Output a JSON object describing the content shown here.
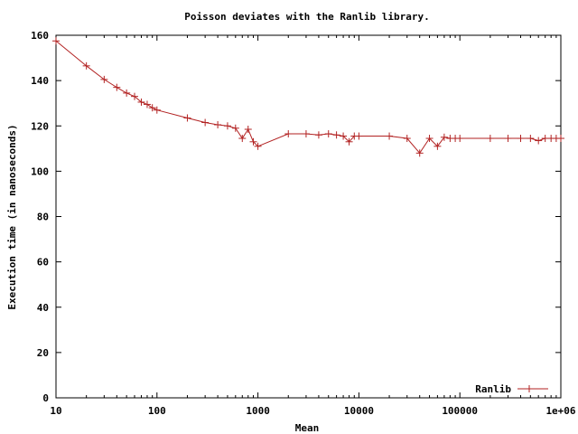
{
  "chart_data": {
    "type": "line",
    "title": "Poisson deviates with the Ranlib library.",
    "xlabel": "Mean",
    "ylabel": "Execution time (in nanoseconds)",
    "x_scale": "log",
    "xlim": [
      10,
      1000000
    ],
    "ylim": [
      0,
      160
    ],
    "xticks": [
      10,
      100,
      1000,
      10000,
      100000,
      1000000
    ],
    "xtick_labels": [
      "10",
      "100",
      "1000",
      "10000",
      "100000",
      "1e+06"
    ],
    "yticks": [
      0,
      20,
      40,
      60,
      80,
      100,
      120,
      140,
      160
    ],
    "ytick_labels": [
      "0",
      "20",
      "40",
      "60",
      "80",
      "100",
      "120",
      "140",
      "160"
    ],
    "legend_position": "bottom-right",
    "grid": false,
    "series": [
      {
        "name": "Ranlib",
        "color": "#b22222",
        "x": [
          10,
          20,
          30,
          40,
          50,
          60,
          70,
          80,
          90,
          100,
          200,
          300,
          400,
          500,
          600,
          700,
          800,
          900,
          1000,
          2000,
          3000,
          4000,
          5000,
          6000,
          7000,
          8000,
          9000,
          10000,
          20000,
          30000,
          40000,
          50000,
          60000,
          70000,
          80000,
          90000,
          100000,
          200000,
          300000,
          400000,
          500000,
          600000,
          700000,
          800000,
          900000,
          1000000
        ],
        "values": [
          157.5,
          146.5,
          140.5,
          137,
          134.5,
          133,
          130.5,
          129.5,
          128,
          127,
          123.5,
          121.5,
          120.5,
          120,
          119,
          114.5,
          118.5,
          113,
          111,
          116.5,
          116.5,
          116,
          116.5,
          116,
          115.5,
          113,
          115.5,
          115.5,
          115.5,
          114.5,
          108,
          114.5,
          111,
          115,
          114.5,
          114.5,
          114.5,
          114.5,
          114.5,
          114.5,
          114.5,
          113.5,
          114.5,
          114.5,
          114.5,
          114.5
        ]
      }
    ]
  }
}
